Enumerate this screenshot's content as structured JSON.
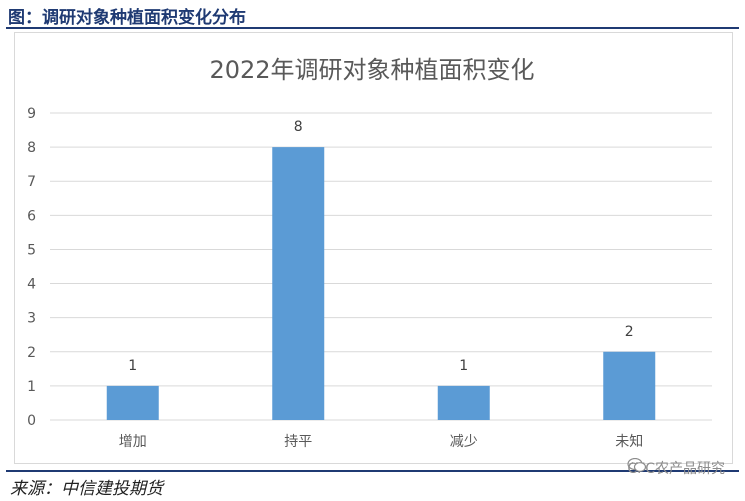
{
  "caption": "图：调研对象种植面积变化分布",
  "source": "来源：中信建投期货",
  "watermark": {
    "text": "CFC农产品研究",
    "icon": "wechat-icon"
  },
  "chart_data": {
    "type": "bar",
    "title": "2022年调研对象种植面积变化",
    "categories": [
      "增加",
      "持平",
      "减少",
      "未知"
    ],
    "values": [
      1,
      8,
      1,
      2
    ],
    "ylim": [
      0,
      9
    ],
    "yticks": [
      0,
      1,
      2,
      3,
      4,
      5,
      6,
      7,
      8,
      9
    ],
    "grid": true,
    "color": "#5b9bd5",
    "data_labels": true
  }
}
